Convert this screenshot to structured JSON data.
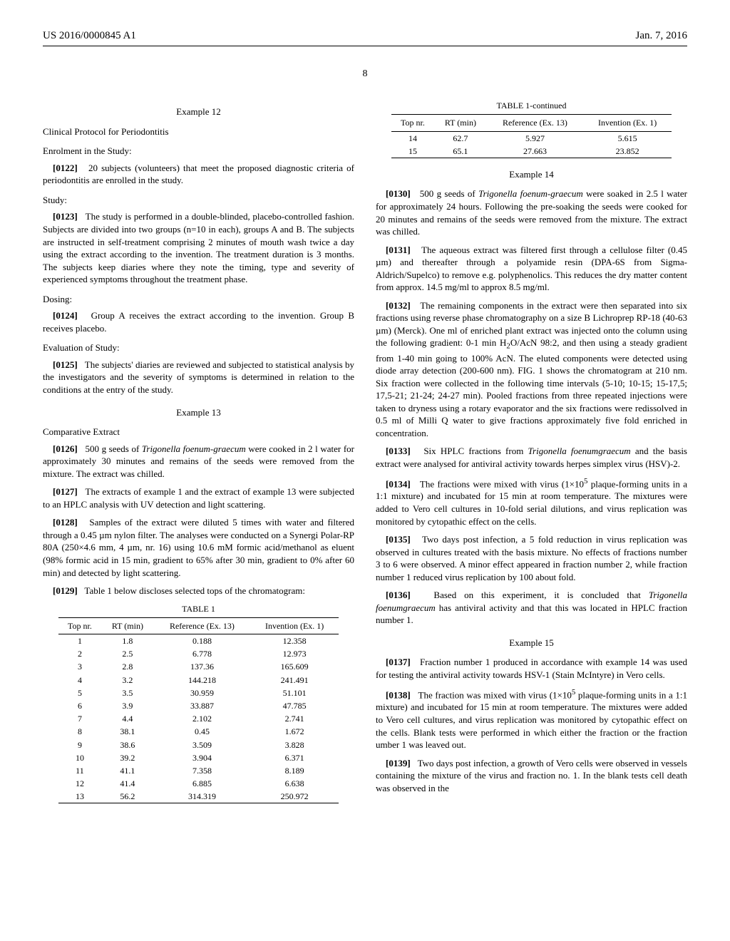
{
  "header": {
    "pub_number": "US 2016/0000845 A1",
    "date": "Jan. 7, 2016",
    "page_number": "8"
  },
  "left_column": {
    "example12": {
      "title": "Example 12",
      "subtitle": "Clinical Protocol for Periodontitis",
      "enrolment_heading": "Enrolment in the Study:",
      "p0122_num": "[0122]",
      "p0122": "20 subjects (volunteers) that meet the proposed diagnostic criteria of periodontitis are enrolled in the study.",
      "study_heading": "Study:",
      "p0123_num": "[0123]",
      "p0123": "The study is performed in a double-blinded, placebo-controlled fashion. Subjects are divided into two groups (n=10 in each), groups A and B. The subjects are instructed in self-treatment comprising 2 minutes of mouth wash twice a day using the extract according to the invention. The treatment duration is 3 months. The subjects keep diaries where they note the timing, type and severity of experienced symptoms throughout the treatment phase.",
      "dosing_heading": "Dosing:",
      "p0124_num": "[0124]",
      "p0124": "Group A receives the extract according to the invention. Group B receives placebo.",
      "eval_heading": "Evaluation of Study:",
      "p0125_num": "[0125]",
      "p0125": "The subjects' diaries are reviewed and subjected to statistical analysis by the investigators and the severity of symptoms is determined in relation to the conditions at the entry of the study."
    },
    "example13": {
      "title": "Example 13",
      "subtitle": "Comparative Extract",
      "p0126_num": "[0126]",
      "p0126_a": "500 g seeds of ",
      "p0126_em": "Trigonella foenum-graecum",
      "p0126_b": " were cooked in 2 l water for approximately 30 minutes and remains of the seeds were removed from the mixture. The extract was chilled.",
      "p0127_num": "[0127]",
      "p0127": "The extracts of example 1 and the extract of example 13 were subjected to an HPLC analysis with UV detection and light scattering.",
      "p0128_num": "[0128]",
      "p0128": "Samples of the extract were diluted 5 times with water and filtered through a 0.45 µm nylon filter. The analyses were conducted on a Synergi Polar-RP 80A (250×4.6 mm, 4 µm, nr. 16) using 10.6 mM formic acid/methanol as eluent (98% formic acid in 15 min, gradient to 65% after 30 min, gradient to 0% after 60 min) and detected by light scattering.",
      "p0129_num": "[0129]",
      "p0129": "Table 1 below discloses selected tops of the chromatogram:"
    },
    "table1": {
      "caption": "TABLE 1",
      "columns": [
        "Top nr.",
        "RT (min)",
        "Reference (Ex. 13)",
        "Invention (Ex. 1)"
      ],
      "rows": [
        [
          "1",
          "1.8",
          "0.188",
          "12.358"
        ],
        [
          "2",
          "2.5",
          "6.778",
          "12.973"
        ],
        [
          "3",
          "2.8",
          "137.36",
          "165.609"
        ],
        [
          "4",
          "3.2",
          "144.218",
          "241.491"
        ],
        [
          "5",
          "3.5",
          "30.959",
          "51.101"
        ],
        [
          "6",
          "3.9",
          "33.887",
          "47.785"
        ],
        [
          "7",
          "4.4",
          "2.102",
          "2.741"
        ],
        [
          "8",
          "38.1",
          "0.45",
          "1.672"
        ],
        [
          "9",
          "38.6",
          "3.509",
          "3.828"
        ],
        [
          "10",
          "39.2",
          "3.904",
          "6.371"
        ],
        [
          "11",
          "41.1",
          "7.358",
          "8.189"
        ],
        [
          "12",
          "41.4",
          "6.885",
          "6.638"
        ],
        [
          "13",
          "56.2",
          "314.319",
          "250.972"
        ]
      ]
    }
  },
  "right_column": {
    "table1_cont": {
      "caption": "TABLE 1-continued",
      "columns": [
        "Top nr.",
        "RT (min)",
        "Reference (Ex. 13)",
        "Invention (Ex. 1)"
      ],
      "rows": [
        [
          "14",
          "62.7",
          "5.927",
          "5.615"
        ],
        [
          "15",
          "65.1",
          "27.663",
          "23.852"
        ]
      ]
    },
    "example14": {
      "title": "Example 14",
      "p0130_num": "[0130]",
      "p0130_a": "500 g seeds of ",
      "p0130_em": "Trigonella foenum-graecum",
      "p0130_b": " were soaked in 2.5 l water for approximately 24 hours. Following the pre-soaking the seeds were cooked for 20 minutes and remains of the seeds were removed from the mixture. The extract was chilled.",
      "p0131_num": "[0131]",
      "p0131": "The aqueous extract was filtered first through a cellulose filter (0.45 µm) and thereafter through a polyamide resin (DPA-6S from Sigma-Aldrich/Supelco) to remove e.g. polyphenolics. This reduces the dry matter content from approx. 14.5 mg/ml to approx 8.5 mg/ml.",
      "p0132_num": "[0132]",
      "p0132_a": "The remaining components in the extract were then separated into six fractions using reverse phase chromatography on a size B Lichroprep RP-18 (40-63 µm) (Merck). One ml of enriched plant extract was injected onto the column using the following gradient: 0-1 min H",
      "p0132_sub": "2",
      "p0132_b": "O/AcN 98:2, and then using a steady gradient from 1-40 min going to 100% AcN. The eluted components were detected using diode array detection (200-600 nm). FIG. 1 shows the chromatogram at 210 nm. Six fraction were collected in the following time intervals (5-10; 10-15; 15-17,5; 17,5-21; 21-24; 24-27 min). Pooled fractions from three repeated injections were taken to dryness using a rotary evaporator and the six fractions were redissolved in 0.5 ml of Milli Q water to give fractions approximately five fold enriched in concentration.",
      "p0133_num": "[0133]",
      "p0133_a": "Six HPLC fractions from ",
      "p0133_em": "Trigonella foenumgraecum",
      "p0133_b": " and the basis extract were analysed for antiviral activity towards herpes simplex virus (HSV)-2.",
      "p0134_num": "[0134]",
      "p0134_a": "The fractions were mixed with virus (1×10",
      "p0134_sup": "5",
      "p0134_b": " plaque-forming units in a 1:1 mixture) and incubated for 15 min at room temperature. The mixtures were added to Vero cell cultures in 10-fold serial dilutions, and virus replication was monitored by cytopathic effect on the cells.",
      "p0135_num": "[0135]",
      "p0135": "Two days post infection, a 5 fold reduction in virus replication was observed in cultures treated with the basis mixture. No effects of fractions number 3 to 6 were observed. A minor effect appeared in fraction number 2, while fraction number 1 reduced virus replication by 100 about fold.",
      "p0136_num": "[0136]",
      "p0136_a": "Based on this experiment, it is concluded that ",
      "p0136_em": "Trigonella foenumgraecum",
      "p0136_b": " has antiviral activity and that this was located in HPLC fraction number 1."
    },
    "example15": {
      "title": "Example 15",
      "p0137_num": "[0137]",
      "p0137": "Fraction number 1 produced in accordance with example 14 was used for testing the antiviral activity towards HSV-1 (Stain McIntyre) in Vero cells.",
      "p0138_num": "[0138]",
      "p0138_a": "The fraction was mixed with virus (1×10",
      "p0138_sup": "5",
      "p0138_b": " plaque-forming units in a 1:1 mixture) and incubated for 15 min at room temperature. The mixtures were added to Vero cell cultures, and virus replication was monitored by cytopathic effect on the cells. Blank tests were performed in which either the fraction or the fraction umber 1 was leaved out.",
      "p0139_num": "[0139]",
      "p0139": "Two days post infection, a growth of Vero cells were observed in vessels containing the mixture of the virus and fraction no. 1. In the blank tests cell death was observed in the"
    }
  }
}
